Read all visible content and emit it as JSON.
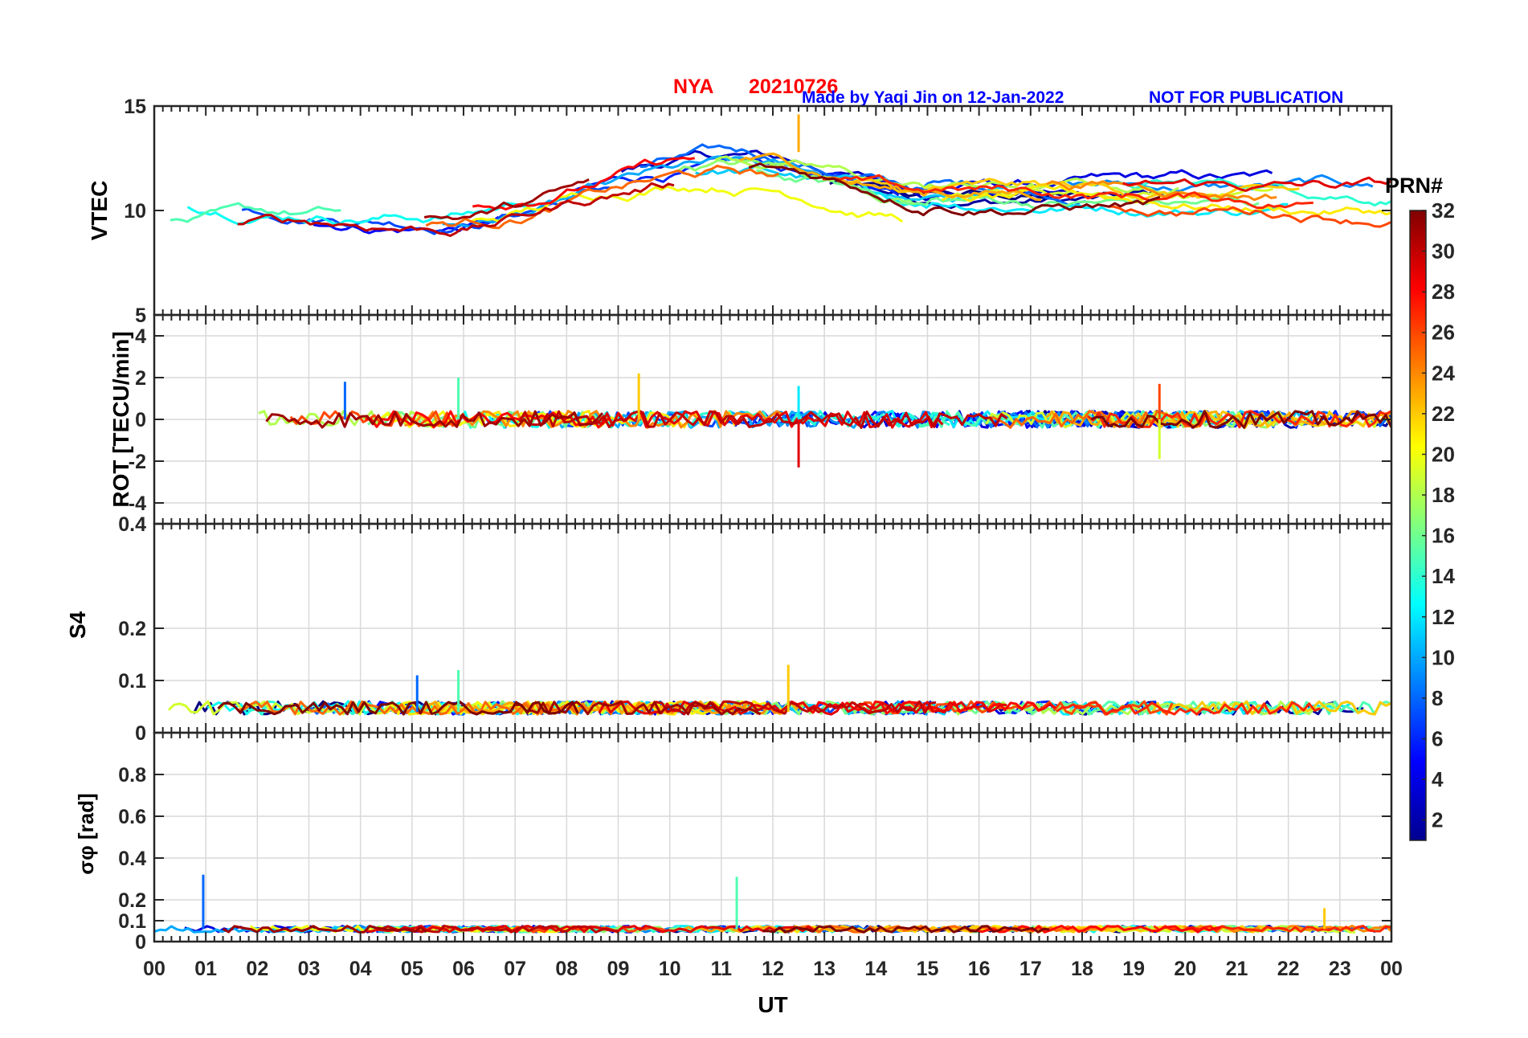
{
  "header": {
    "station": "NYA",
    "date": "20210726",
    "credit": "Made by Yaqi Jin on 12-Jan-2022",
    "notice": "NOT FOR PUBLICATION"
  },
  "colors": {
    "title_red": "#ff0000",
    "credit_blue": "#0000ff",
    "axis": "#262626",
    "grid": "#d9d9d9"
  },
  "colorbar": {
    "label": "PRN#",
    "min": 1,
    "max": 32,
    "ticks": [
      "2",
      "4",
      "6",
      "8",
      "10",
      "12",
      "14",
      "16",
      "18",
      "20",
      "22",
      "24",
      "26",
      "28",
      "30",
      "32"
    ],
    "colormap": "jet"
  },
  "chart_data": [
    {
      "type": "line",
      "panel": "vtec",
      "ylabel": "VTEC",
      "ylim": [
        5,
        15
      ],
      "yticks": [
        "5",
        "10",
        "15"
      ],
      "xlim": [
        0,
        24
      ],
      "series_note": "one line per satellite PRN 1-32, color by PRN",
      "typical_range": [
        8,
        13.5
      ],
      "trend": "about 9-11 TECU in 00-08 UT, rising to about 12-13 TECU near 09-13 UT, about 10-11 TECU after 14 UT",
      "peak": {
        "x": 12.5,
        "y": 14.6
      }
    },
    {
      "type": "line",
      "panel": "rot",
      "ylabel": "ROT [TECU/min]",
      "ylim": [
        -5,
        5
      ],
      "yticks": [
        "-4",
        "-2",
        "0",
        "2",
        "4"
      ],
      "xlim": [
        0,
        24
      ],
      "typical_range": [
        -0.6,
        0.6
      ],
      "spikes": [
        {
          "x": 3.7,
          "y": 1.8
        },
        {
          "x": 5.9,
          "y": 2.0
        },
        {
          "x": 9.4,
          "y": 2.2
        },
        {
          "x": 12.5,
          "y": -2.3
        },
        {
          "x": 12.5,
          "y": 1.6
        },
        {
          "x": 19.5,
          "y": -1.9
        },
        {
          "x": 19.5,
          "y": 1.7
        }
      ]
    },
    {
      "type": "line",
      "panel": "s4",
      "ylabel": "S4",
      "ylim": [
        0,
        0.4
      ],
      "yticks": [
        "0",
        "0.1",
        "0.2",
        "0.4"
      ],
      "xlim": [
        0,
        24
      ],
      "typical_range": [
        0.02,
        0.07
      ],
      "peaks": [
        {
          "x": 5.1,
          "y": 0.11
        },
        {
          "x": 5.9,
          "y": 0.12
        },
        {
          "x": 12.3,
          "y": 0.13
        }
      ]
    },
    {
      "type": "line",
      "panel": "sigma_phi",
      "ylabel": "σφ [rad]",
      "ylim": [
        0,
        1
      ],
      "yticks": [
        "0",
        "0.1",
        "0.2",
        "0.4",
        "0.6",
        "0.8"
      ],
      "xlim": [
        0,
        24
      ],
      "typical_range": [
        0.03,
        0.1
      ],
      "spikes": [
        {
          "x": 0.95,
          "y": 0.32
        },
        {
          "x": 11.3,
          "y": 0.31
        },
        {
          "x": 22.7,
          "y": 0.16
        }
      ]
    }
  ],
  "xaxis": {
    "label": "UT",
    "ticks": [
      "00",
      "01",
      "02",
      "03",
      "04",
      "05",
      "06",
      "07",
      "08",
      "09",
      "10",
      "11",
      "12",
      "13",
      "14",
      "15",
      "16",
      "17",
      "18",
      "19",
      "20",
      "21",
      "22",
      "23",
      "00"
    ]
  }
}
